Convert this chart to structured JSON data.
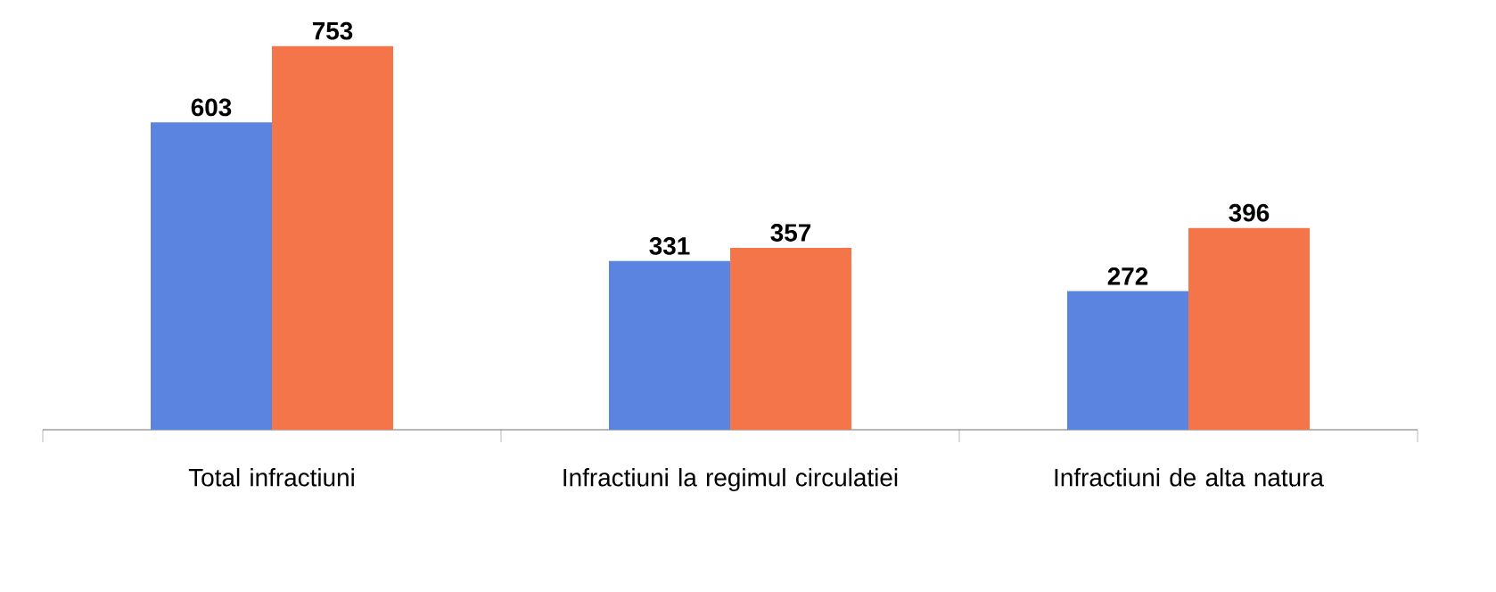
{
  "chart_data": {
    "type": "bar",
    "categories": [
      "Total infractiuni",
      "Infractiuni la regimul circulatiei",
      "Infractiuni de alta natura"
    ],
    "series": [
      {
        "color": "#5b83e0",
        "values": [
          603,
          331,
          272
        ]
      },
      {
        "color": "#f5754b",
        "values": [
          753,
          357,
          396
        ]
      }
    ],
    "data_labels": true
  }
}
